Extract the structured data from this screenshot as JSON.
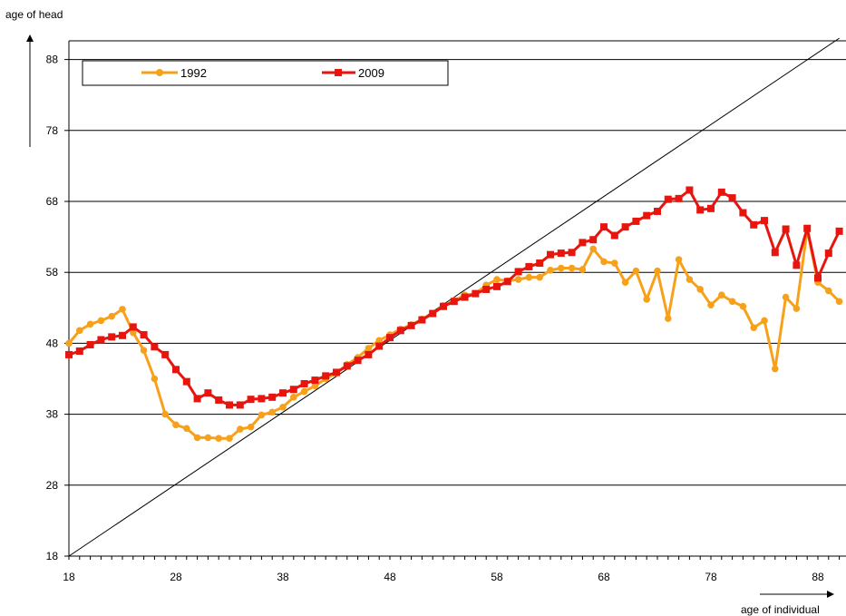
{
  "chart_data": {
    "type": "line",
    "xlabel": "age of individual",
    "ylabel": "age of head",
    "xlim": [
      18,
      90
    ],
    "ylim": [
      18,
      91
    ],
    "x_ticks": [
      "18",
      "28",
      "38",
      "48",
      "58",
      "68",
      "78",
      "88"
    ],
    "y_ticks": [
      "18",
      "28",
      "38",
      "48",
      "58",
      "68",
      "78",
      "88"
    ],
    "grid": "horizontal",
    "legend_position": "top-left",
    "reference_line": {
      "type": "diagonal",
      "from": [
        18,
        18
      ],
      "to": [
        90,
        91
      ]
    },
    "x": [
      18,
      19,
      20,
      21,
      22,
      23,
      24,
      25,
      26,
      27,
      28,
      29,
      30,
      31,
      32,
      33,
      34,
      35,
      36,
      37,
      38,
      39,
      40,
      41,
      42,
      43,
      44,
      45,
      46,
      47,
      48,
      49,
      50,
      51,
      52,
      53,
      54,
      55,
      56,
      57,
      58,
      59,
      60,
      61,
      62,
      63,
      64,
      65,
      66,
      67,
      68,
      69,
      70,
      71,
      72,
      73,
      74,
      75,
      76,
      77,
      78,
      79,
      80,
      81,
      82,
      83,
      84,
      85,
      86,
      87,
      88,
      89,
      90
    ],
    "series": [
      {
        "name": "1992",
        "color": "#F7A11A",
        "marker": "circle",
        "values": [
          48.0,
          49.8,
          50.7,
          51.2,
          51.8,
          52.8,
          49.5,
          47.0,
          43.0,
          38.0,
          36.5,
          36.0,
          34.7,
          34.7,
          34.6,
          34.6,
          35.9,
          36.2,
          37.9,
          38.3,
          39.0,
          40.4,
          41.2,
          42.0,
          43.0,
          43.8,
          45.0,
          46.0,
          47.3,
          48.4,
          49.2,
          50.0,
          50.6,
          51.4,
          52.2,
          53.3,
          54.0,
          54.8,
          55.0,
          56.2,
          57.0,
          56.8,
          57.0,
          57.3,
          57.3,
          58.3,
          58.6,
          58.6,
          58.4,
          61.3,
          59.5,
          59.3,
          56.6,
          58.2,
          54.2,
          58.2,
          51.5,
          59.8,
          57.0,
          55.6,
          53.4,
          54.8,
          53.9,
          53.2,
          50.2,
          51.2,
          44.4,
          54.5,
          52.9,
          64.0,
          56.6,
          55.4,
          53.9
        ]
      },
      {
        "name": "2009",
        "color": "#E8150F",
        "marker": "square",
        "values": [
          46.4,
          46.9,
          47.8,
          48.5,
          48.9,
          49.1,
          50.3,
          49.2,
          47.5,
          46.4,
          44.3,
          42.6,
          40.2,
          41.0,
          40.0,
          39.3,
          39.3,
          40.1,
          40.2,
          40.4,
          41.0,
          41.5,
          42.3,
          42.8,
          43.4,
          43.9,
          44.8,
          45.6,
          46.4,
          47.6,
          48.8,
          49.8,
          50.5,
          51.3,
          52.2,
          53.2,
          53.9,
          54.5,
          55.0,
          55.6,
          56.0,
          56.7,
          58.1,
          58.8,
          59.3,
          60.5,
          60.7,
          60.8,
          62.2,
          62.6,
          64.4,
          63.2,
          64.4,
          65.2,
          66.0,
          66.6,
          68.3,
          68.4,
          69.6,
          66.8,
          67.0,
          69.3,
          68.5,
          66.4,
          64.7,
          65.3,
          60.8,
          64.1,
          59.0,
          64.2,
          57.2,
          60.7,
          63.8
        ]
      }
    ]
  }
}
